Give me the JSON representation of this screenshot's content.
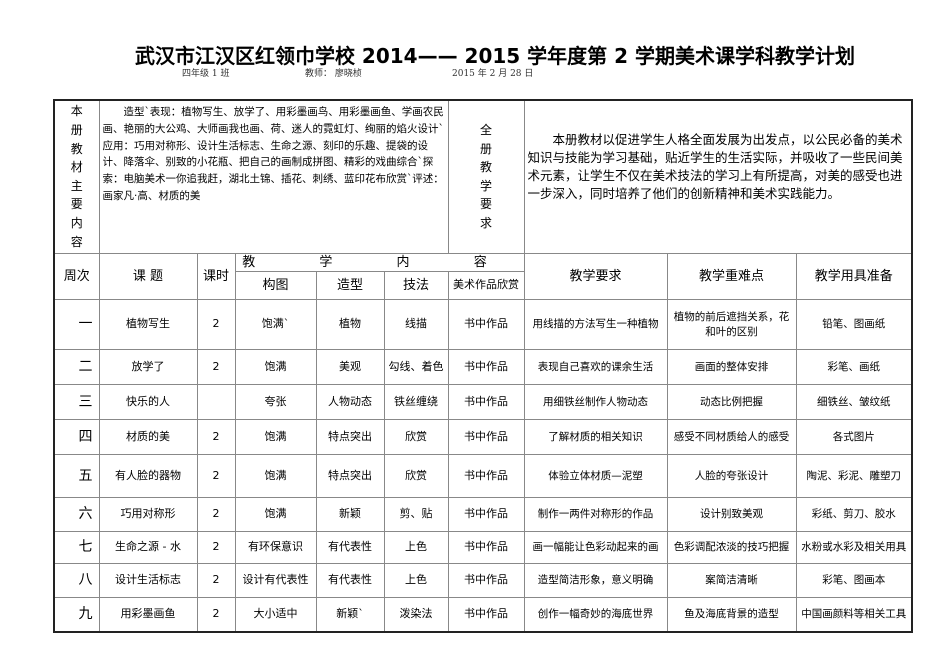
{
  "title": "武汉市江汉区红领巾学校 2014—— 2015 学年度第 2 学期美术课学科教学计划",
  "class": "四年级 1 班",
  "teacher": "教师： 廖晓桢",
  "date": "2015 年 2 月 28 日",
  "textbook_label": "本册教材主要内容",
  "textbook_content": "　　造型`表现：植物写生、放学了、用彩墨画鸟、用彩墨画鱼、学画农民画、艳丽的大公鸡、大师画我也画、荷、迷人的霓虹灯、绚丽的焰火设计`应用：巧用对称形、设计生活标志、生命之源、刻印的乐趣、提袋的设计、降落伞、别致的小花瓶、把自己的画制成拼图、精彩的戏曲综合`探索：电脑美术一你追我赶，湖北土锦、插花、刺绣、蓝印花布欣赏`评述：画家凡·高、材质的美",
  "requirement_label": "全册教学要求",
  "requirement_content": "　　本册教材以促进学生人格全面发展为出发点，以公民必备的美术知识与技能为学习基础，贴近学生的生活实际，并吸收了一些民间美术元素，让学生不仅在美术技法的学习上有所提高，对美的感受也进一步深入，同时培养了他们的创新精神和美术实践能力。",
  "headers": {
    "week": "周次",
    "topic": "课 题",
    "hours": "课时",
    "content": "教 学 内 容",
    "composition": "构图",
    "modeling": "造型",
    "technique": "技法",
    "appreciation": "美术作品欣赏",
    "requirement": "教学要求",
    "key_points": "教学重难点",
    "tools": "教学用具准备"
  },
  "rows": [
    {
      "week": "一",
      "topic": "植物写生",
      "hours": "2",
      "composition": "饱满`",
      "modeling": "植物",
      "technique": "线描",
      "appreciation": "书中作品",
      "requirement": "用线描的方法写生一种植物",
      "key_points": "植物的前后遮挡关系，花和叶的区别",
      "tools": "铅笔、图画纸"
    },
    {
      "week": "二",
      "topic": "放学了",
      "hours": "2",
      "composition": "饱满",
      "modeling": "美观",
      "technique": "勾线、着色",
      "appreciation": "书中作品",
      "requirement": "表现自己喜欢的课余生活",
      "key_points": "画面的整体安排",
      "tools": "彩笔、画纸"
    },
    {
      "week": "三",
      "topic": "快乐的人",
      "hours": "",
      "composition": "夸张",
      "modeling": "人物动态",
      "technique": "铁丝缠绕",
      "appreciation": "书中作品",
      "requirement": "用细铁丝制作人物动态",
      "key_points": "动态比例把握",
      "tools": "细铁丝、皱纹纸"
    },
    {
      "week": "四",
      "topic": "材质的美",
      "hours": "2",
      "composition": "饱满",
      "modeling": "特点突出",
      "technique": "欣赏",
      "appreciation": "书中作品",
      "requirement": "了解材质的相关知识",
      "key_points": "感受不同材质给人的感受",
      "tools": "各式图片"
    },
    {
      "week": "五",
      "topic": "有人脸的器物",
      "hours": "2",
      "composition": "饱满",
      "modeling": "特点突出",
      "technique": "欣赏",
      "appreciation": "书中作品",
      "requirement": "体验立体材质—泥塑",
      "key_points": "人脸的夸张设计",
      "tools": "陶泥、彩泥、雕塑刀"
    },
    {
      "week": "六",
      "topic": "巧用对称形",
      "hours": "2",
      "composition": "饱满",
      "modeling": "新颖",
      "technique": "剪、贴",
      "appreciation": "书中作品",
      "requirement": "制作一两件对称形的作品",
      "key_points": "设计别致美观",
      "tools": "彩纸、剪刀、胶水"
    },
    {
      "week": "七",
      "topic": "生命之源 - 水",
      "hours": "2",
      "composition": "有环保意识",
      "modeling": "有代表性",
      "technique": "上色",
      "appreciation": "书中作品",
      "requirement": "画一幅能让色彩动起来的画",
      "key_points": "色彩调配浓淡的技巧把握",
      "tools": "水粉或水彩及相关用具"
    },
    {
      "week": "八",
      "topic": "设计生活标志",
      "hours": "2",
      "composition": "设计有代表性",
      "modeling": "有代表性",
      "technique": "上色",
      "appreciation": "书中作品",
      "requirement": "造型简洁形象，意义明确",
      "key_points": "案简洁清晰",
      "tools": "彩笔、图画本"
    },
    {
      "week": "九",
      "topic": "用彩墨画鱼",
      "hours": "2",
      "composition": "大小适中",
      "modeling": "新颖`",
      "technique": "泼染法",
      "appreciation": "书中作品",
      "requirement": "创作一幅奇妙的海底世界",
      "key_points": "鱼及海底背景的造型",
      "tools": "中国画颜料等相关工具"
    }
  ]
}
